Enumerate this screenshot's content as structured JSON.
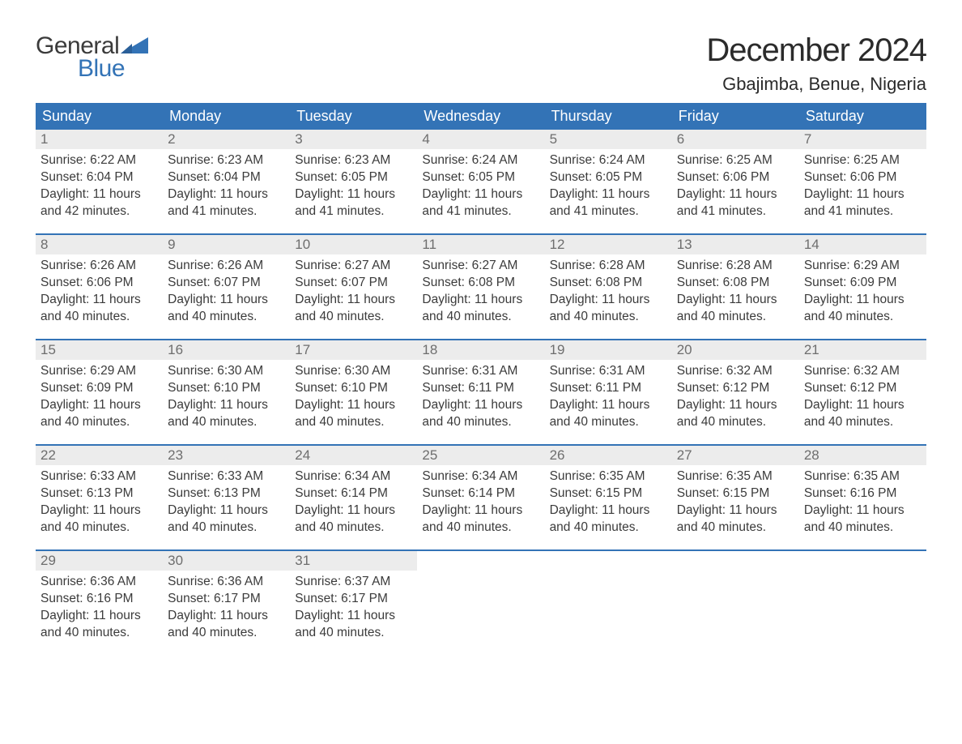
{
  "logo": {
    "word1": "General",
    "word2": "Blue"
  },
  "title": "December 2024",
  "location": "Gbajimba, Benue, Nigeria",
  "colors": {
    "header_bg": "#3373b6",
    "header_text": "#ffffff",
    "daynum_bg": "#ececec",
    "daynum_text": "#6e6e6e",
    "body_text": "#3b3b3b",
    "row_border": "#3373b6",
    "logo_blue": "#3373b6"
  },
  "day_names": [
    "Sunday",
    "Monday",
    "Tuesday",
    "Wednesday",
    "Thursday",
    "Friday",
    "Saturday"
  ],
  "weeks": [
    [
      {
        "n": "1",
        "sr": "6:22 AM",
        "ss": "6:04 PM",
        "dl": "11 hours and 42 minutes."
      },
      {
        "n": "2",
        "sr": "6:23 AM",
        "ss": "6:04 PM",
        "dl": "11 hours and 41 minutes."
      },
      {
        "n": "3",
        "sr": "6:23 AM",
        "ss": "6:05 PM",
        "dl": "11 hours and 41 minutes."
      },
      {
        "n": "4",
        "sr": "6:24 AM",
        "ss": "6:05 PM",
        "dl": "11 hours and 41 minutes."
      },
      {
        "n": "5",
        "sr": "6:24 AM",
        "ss": "6:05 PM",
        "dl": "11 hours and 41 minutes."
      },
      {
        "n": "6",
        "sr": "6:25 AM",
        "ss": "6:06 PM",
        "dl": "11 hours and 41 minutes."
      },
      {
        "n": "7",
        "sr": "6:25 AM",
        "ss": "6:06 PM",
        "dl": "11 hours and 41 minutes."
      }
    ],
    [
      {
        "n": "8",
        "sr": "6:26 AM",
        "ss": "6:06 PM",
        "dl": "11 hours and 40 minutes."
      },
      {
        "n": "9",
        "sr": "6:26 AM",
        "ss": "6:07 PM",
        "dl": "11 hours and 40 minutes."
      },
      {
        "n": "10",
        "sr": "6:27 AM",
        "ss": "6:07 PM",
        "dl": "11 hours and 40 minutes."
      },
      {
        "n": "11",
        "sr": "6:27 AM",
        "ss": "6:08 PM",
        "dl": "11 hours and 40 minutes."
      },
      {
        "n": "12",
        "sr": "6:28 AM",
        "ss": "6:08 PM",
        "dl": "11 hours and 40 minutes."
      },
      {
        "n": "13",
        "sr": "6:28 AM",
        "ss": "6:08 PM",
        "dl": "11 hours and 40 minutes."
      },
      {
        "n": "14",
        "sr": "6:29 AM",
        "ss": "6:09 PM",
        "dl": "11 hours and 40 minutes."
      }
    ],
    [
      {
        "n": "15",
        "sr": "6:29 AM",
        "ss": "6:09 PM",
        "dl": "11 hours and 40 minutes."
      },
      {
        "n": "16",
        "sr": "6:30 AM",
        "ss": "6:10 PM",
        "dl": "11 hours and 40 minutes."
      },
      {
        "n": "17",
        "sr": "6:30 AM",
        "ss": "6:10 PM",
        "dl": "11 hours and 40 minutes."
      },
      {
        "n": "18",
        "sr": "6:31 AM",
        "ss": "6:11 PM",
        "dl": "11 hours and 40 minutes."
      },
      {
        "n": "19",
        "sr": "6:31 AM",
        "ss": "6:11 PM",
        "dl": "11 hours and 40 minutes."
      },
      {
        "n": "20",
        "sr": "6:32 AM",
        "ss": "6:12 PM",
        "dl": "11 hours and 40 minutes."
      },
      {
        "n": "21",
        "sr": "6:32 AM",
        "ss": "6:12 PM",
        "dl": "11 hours and 40 minutes."
      }
    ],
    [
      {
        "n": "22",
        "sr": "6:33 AM",
        "ss": "6:13 PM",
        "dl": "11 hours and 40 minutes."
      },
      {
        "n": "23",
        "sr": "6:33 AM",
        "ss": "6:13 PM",
        "dl": "11 hours and 40 minutes."
      },
      {
        "n": "24",
        "sr": "6:34 AM",
        "ss": "6:14 PM",
        "dl": "11 hours and 40 minutes."
      },
      {
        "n": "25",
        "sr": "6:34 AM",
        "ss": "6:14 PM",
        "dl": "11 hours and 40 minutes."
      },
      {
        "n": "26",
        "sr": "6:35 AM",
        "ss": "6:15 PM",
        "dl": "11 hours and 40 minutes."
      },
      {
        "n": "27",
        "sr": "6:35 AM",
        "ss": "6:15 PM",
        "dl": "11 hours and 40 minutes."
      },
      {
        "n": "28",
        "sr": "6:35 AM",
        "ss": "6:16 PM",
        "dl": "11 hours and 40 minutes."
      }
    ],
    [
      {
        "n": "29",
        "sr": "6:36 AM",
        "ss": "6:16 PM",
        "dl": "11 hours and 40 minutes."
      },
      {
        "n": "30",
        "sr": "6:36 AM",
        "ss": "6:17 PM",
        "dl": "11 hours and 40 minutes."
      },
      {
        "n": "31",
        "sr": "6:37 AM",
        "ss": "6:17 PM",
        "dl": "11 hours and 40 minutes."
      },
      null,
      null,
      null,
      null
    ]
  ],
  "labels": {
    "sunrise": "Sunrise: ",
    "sunset": "Sunset: ",
    "daylight": "Daylight: "
  }
}
